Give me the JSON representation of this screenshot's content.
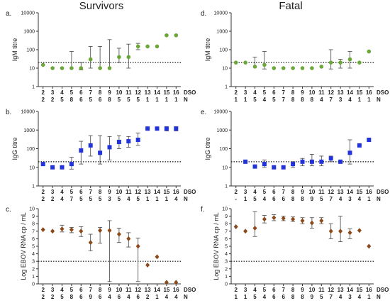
{
  "figure": {
    "column_titles": [
      "Survivors",
      "Fatal"
    ],
    "x_row_label": "DSO",
    "n_row_label": "N"
  },
  "chart_data": [
    {
      "panel": "a.",
      "type": "scatter",
      "ylabel": "IgM titre",
      "yscale": "log",
      "ylim": [
        1,
        10000
      ],
      "yticks": [
        1,
        10,
        100,
        1000,
        10000
      ],
      "reference_line": 20,
      "color": "#6aa638",
      "marker": "circle",
      "x": [
        2,
        3,
        4,
        5,
        6,
        7,
        8,
        9,
        10,
        11,
        12,
        13,
        14,
        15,
        16
      ],
      "y": [
        15,
        10,
        10,
        10,
        10,
        30,
        10,
        10,
        40,
        40,
        150,
        150,
        150,
        600,
        600
      ],
      "yerr_low": [
        null,
        null,
        null,
        null,
        8,
        10,
        null,
        null,
        20,
        10,
        100,
        null,
        null,
        null,
        null
      ],
      "yerr_high": [
        null,
        null,
        null,
        80,
        20,
        150,
        150,
        350,
        120,
        200,
        220,
        null,
        null,
        null,
        null
      ],
      "n": [
        2,
        2,
        5,
        8,
        6,
        5,
        6,
        8,
        5,
        5,
        5,
        1,
        1,
        1,
        1
      ]
    },
    {
      "panel": "b.",
      "type": "scatter",
      "ylabel": "IgG titre",
      "yscale": "log",
      "ylim": [
        1,
        10000
      ],
      "yticks": [
        1,
        10,
        100,
        1000,
        10000
      ],
      "reference_line": 20,
      "color": "#2233d9",
      "marker": "square",
      "x": [
        2,
        3,
        4,
        5,
        6,
        7,
        8,
        9,
        10,
        11,
        12,
        13,
        14,
        15,
        16
      ],
      "y": [
        15,
        10,
        10,
        15,
        80,
        150,
        60,
        120,
        230,
        250,
        300,
        1200,
        1200,
        1200,
        1200
      ],
      "yerr_low": [
        null,
        null,
        null,
        8,
        15,
        40,
        15,
        25,
        100,
        120,
        150,
        null,
        null,
        900,
        900
      ],
      "yerr_high": [
        null,
        null,
        null,
        35,
        250,
        500,
        500,
        450,
        500,
        450,
        700,
        null,
        null,
        1500,
        1500
      ],
      "n": [
        2,
        2,
        4,
        7,
        5,
        5,
        5,
        3,
        5,
        4,
        5,
        1,
        1,
        1,
        4
      ]
    },
    {
      "panel": "c.",
      "type": "scatter",
      "ylabel": "Log EBOV RNA cp / mL",
      "yscale": "linear",
      "ylim": [
        0,
        10
      ],
      "yticks": [
        0,
        1,
        2,
        3,
        4,
        5,
        6,
        7,
        8,
        9,
        10
      ],
      "reference_line": 3,
      "color": "#8b4a1c",
      "marker": "diamond",
      "x": [
        2,
        3,
        4,
        5,
        6,
        7,
        8,
        9,
        10,
        11,
        12,
        13,
        14,
        15,
        16
      ],
      "y": [
        7.2,
        7,
        7.3,
        7.2,
        7,
        5.5,
        7.1,
        7.1,
        6.6,
        6,
        5,
        2.5,
        3.6,
        0.2,
        0.2
      ],
      "yerr_low": [
        null,
        null,
        6.9,
        6.8,
        6.3,
        4.4,
        5.4,
        0.3,
        5.5,
        4.9,
        0.3,
        null,
        null,
        null,
        null
      ],
      "yerr_high": [
        null,
        null,
        7.8,
        7.5,
        7.6,
        6.6,
        7.5,
        8.4,
        7.4,
        6.8,
        6.1,
        null,
        null,
        null,
        null
      ],
      "n": [
        2,
        2,
        5,
        8,
        6,
        9,
        6,
        4,
        6,
        4,
        6,
        2,
        1,
        4,
        4
      ]
    },
    {
      "panel": "d.",
      "type": "scatter",
      "ylabel": "IgM titre",
      "yscale": "log",
      "ylim": [
        1,
        10000
      ],
      "yticks": [
        1,
        10,
        100,
        1000,
        10000
      ],
      "reference_line": 20,
      "color": "#6aa638",
      "marker": "circle",
      "x": [
        2,
        3,
        4,
        5,
        6,
        7,
        8,
        9,
        10,
        11,
        12,
        13,
        14,
        15,
        16
      ],
      "y": [
        20,
        20,
        12,
        15,
        10,
        10,
        10,
        10,
        10,
        12,
        20,
        20,
        30,
        20,
        80
      ],
      "yerr_low": [
        null,
        null,
        null,
        9,
        null,
        null,
        null,
        null,
        null,
        null,
        9,
        10,
        10,
        null,
        null
      ],
      "yerr_high": [
        null,
        null,
        40,
        80,
        null,
        null,
        null,
        null,
        null,
        null,
        100,
        30,
        80,
        null,
        null
      ],
      "n": [
        1,
        1,
        5,
        4,
        5,
        7,
        8,
        8,
        8,
        4,
        7,
        3,
        4,
        1,
        1
      ]
    },
    {
      "panel": "e.",
      "type": "scatter",
      "ylabel": "IgG titre",
      "yscale": "log",
      "ylim": [
        1,
        10000
      ],
      "yticks": [
        1,
        10,
        100,
        1000,
        10000
      ],
      "reference_line": 20,
      "color": "#2233d9",
      "marker": "square",
      "x": [
        2,
        3,
        4,
        5,
        6,
        7,
        8,
        9,
        10,
        11,
        12,
        13,
        14,
        15,
        16
      ],
      "y": [
        null,
        20,
        11,
        15,
        10,
        10,
        15,
        20,
        20,
        20,
        30,
        20,
        60,
        150,
        300
      ],
      "yerr_low": [
        null,
        null,
        null,
        10,
        null,
        null,
        10,
        12,
        12,
        12,
        20,
        null,
        15,
        null,
        null
      ],
      "yerr_high": [
        null,
        null,
        null,
        25,
        null,
        null,
        20,
        30,
        50,
        40,
        40,
        null,
        300,
        null,
        null
      ],
      "n": [
        null,
        1,
        5,
        4,
        6,
        6,
        8,
        8,
        9,
        5,
        7,
        4,
        3,
        4,
        1
      ]
    },
    {
      "panel": "f.",
      "type": "scatter",
      "ylabel": "Log EBOV RNA cp / mL",
      "yscale": "linear",
      "ylim": [
        0,
        10
      ],
      "yticks": [
        0,
        1,
        2,
        3,
        4,
        5,
        6,
        7,
        8,
        9,
        10
      ],
      "reference_line": 3,
      "color": "#8b4a1c",
      "marker": "diamond",
      "x": [
        2,
        3,
        4,
        5,
        6,
        7,
        8,
        9,
        10,
        11,
        12,
        13,
        14,
        15,
        16
      ],
      "y": [
        7.6,
        7,
        7.4,
        8.6,
        8.8,
        8.7,
        8.6,
        8.4,
        8.1,
        8.4,
        7,
        7,
        6.8,
        7.1,
        5
      ],
      "yerr_low": [
        null,
        null,
        6.3,
        8.1,
        8.4,
        8.4,
        8.3,
        8,
        7.4,
        8,
        6,
        5.6,
        6,
        null,
        null
      ],
      "yerr_high": [
        null,
        null,
        9.6,
        9.1,
        9.2,
        9,
        8.9,
        8.8,
        8.8,
        8.8,
        8,
        9,
        7.3,
        null,
        null
      ],
      "n": [
        1,
        1,
        5,
        4,
        6,
        6,
        8,
        8,
        9,
        5,
        7,
        4,
        3,
        4,
        1
      ]
    }
  ]
}
